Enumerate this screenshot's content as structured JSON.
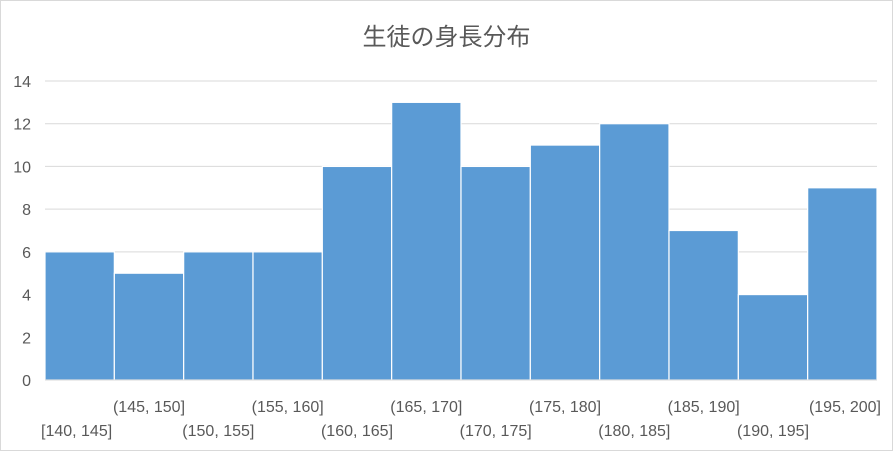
{
  "chart_data": {
    "type": "bar",
    "title": "生徒の身長分布",
    "categories": [
      "[140, 145]",
      "(145, 150]",
      "(150, 155]",
      "(155, 160]",
      "(160, 165]",
      "(165, 170]",
      "(170, 175]",
      "(175, 180]",
      "(180, 185]",
      "(185, 190]",
      "(190, 195]",
      "(195, 200]"
    ],
    "values": [
      6,
      5,
      6,
      6,
      10,
      13,
      10,
      11,
      12,
      7,
      4,
      9
    ],
    "ylim": [
      0,
      14
    ],
    "yticks": [
      0,
      2,
      4,
      6,
      8,
      10,
      12,
      14
    ],
    "grid": true,
    "legend": "none",
    "bar_color": "#5b9bd5",
    "grid_color": "#d9d9d9",
    "text_color": "#595959"
  }
}
